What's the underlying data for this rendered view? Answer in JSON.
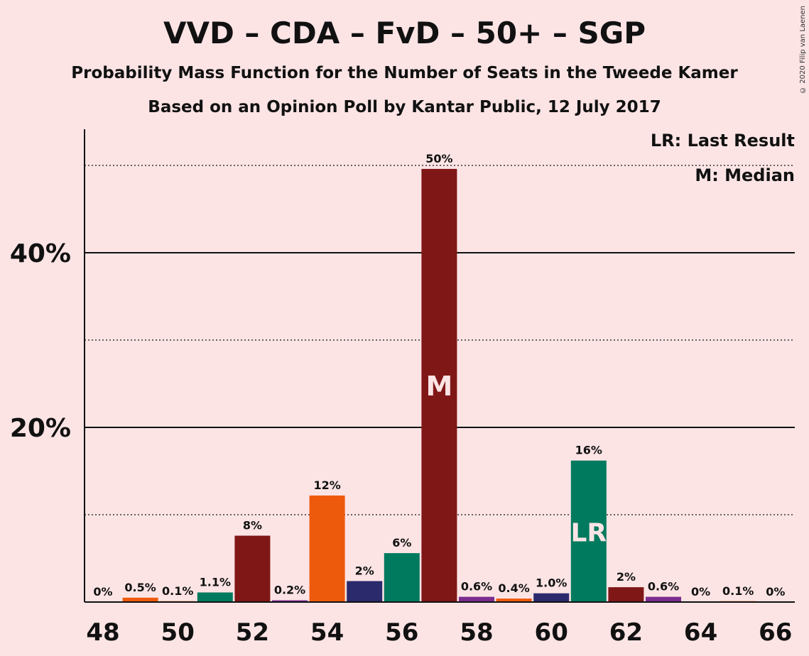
{
  "header": {
    "title": "VVD – CDA – FvD – 50+ – SGP",
    "subtitle": "Probability Mass Function for the Number of Seats in the Tweede Kamer",
    "subtitle2": "Based on an Opinion Poll by Kantar Public, 12 July 2017"
  },
  "legend": {
    "last_result": "LR: Last Result",
    "median": "M: Median"
  },
  "copyright": "© 2020 Filip van Laenen",
  "chart_data": {
    "type": "bar",
    "x": [
      48,
      49,
      50,
      51,
      52,
      53,
      54,
      55,
      56,
      57,
      58,
      59,
      60,
      61,
      62,
      63,
      64,
      65,
      66
    ],
    "values": [
      0,
      0.5,
      0.1,
      1.1,
      7.6,
      0.2,
      12.2,
      2.4,
      5.6,
      49.6,
      0.6,
      0.4,
      1.0,
      16.2,
      1.7,
      0.6,
      0,
      0.1,
      0
    ],
    "labels": [
      "0%",
      "0.5%",
      "0.1%",
      "1.1%",
      "8%",
      "0.2%",
      "12%",
      "2%",
      "6%",
      "50%",
      "0.6%",
      "0.4%",
      "1.0%",
      "16%",
      "2%",
      "0.6%",
      "0%",
      "0.1%",
      "0%"
    ],
    "colors": [
      "#ee5a0c",
      "#ee5a0c",
      "#ee5a0c",
      "#007a5e",
      "#801717",
      "#7b2d8e",
      "#ee5a0c",
      "#2a2a6c",
      "#007a5e",
      "#801717",
      "#7b2d8e",
      "#ee5a0c",
      "#2a2a6c",
      "#007a5e",
      "#801717",
      "#7b2d8e",
      "#ee5a0c",
      "#ee5a0c",
      "#ee5a0c"
    ],
    "x_tick_labels": [
      "48",
      "50",
      "52",
      "54",
      "56",
      "58",
      "60",
      "62",
      "64",
      "66"
    ],
    "y_tick_labels": [
      "20%",
      "40%"
    ],
    "y_ticks": [
      20,
      40
    ],
    "y_minor_ticks": [
      10,
      30,
      50
    ],
    "ylim": [
      0,
      54
    ],
    "median_seat": 57,
    "median_marker": "M",
    "last_result_seat": 61,
    "last_result_marker": "LR",
    "colors_meta": {
      "background": "#fce4e5",
      "text": "#111111",
      "marker_text": "#fce4e5"
    }
  }
}
